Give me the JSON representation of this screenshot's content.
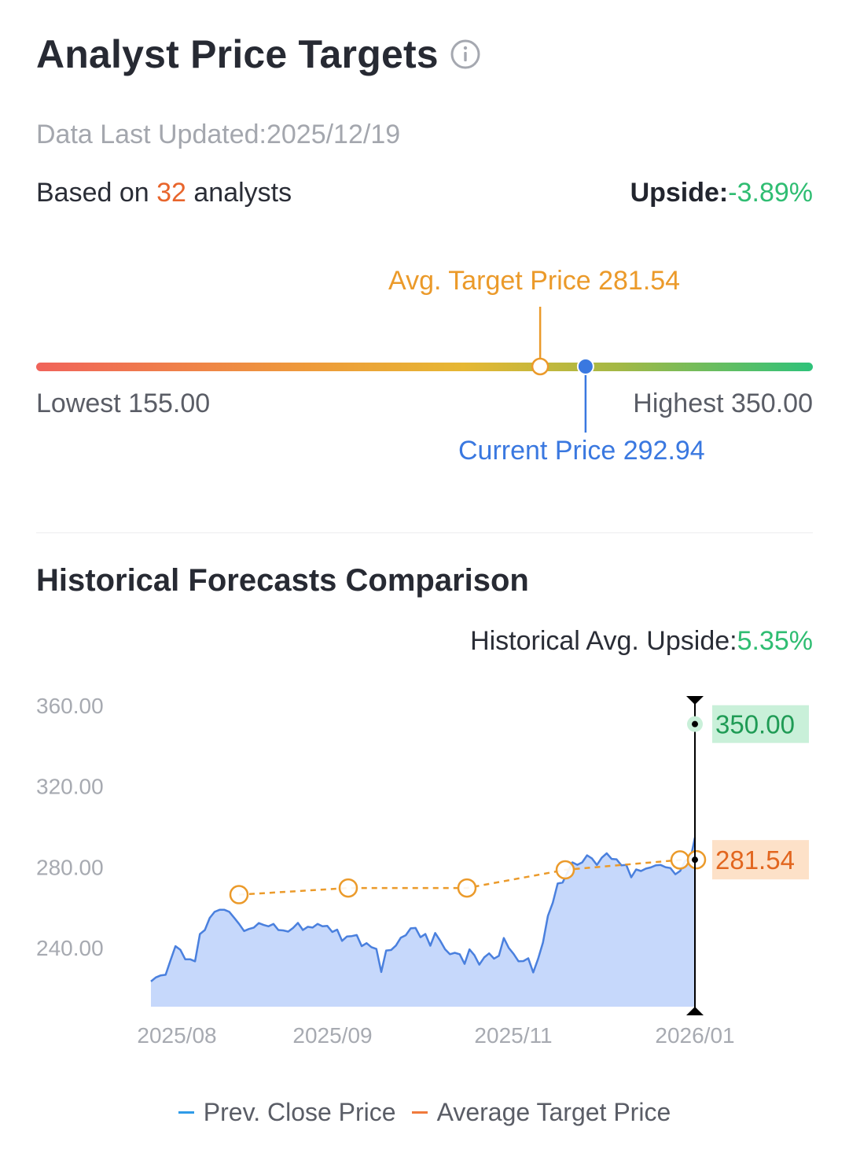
{
  "header": {
    "title": "Analyst Price Targets",
    "updated": "Data Last Updated:2025/12/19",
    "based_prefix": "Based on ",
    "analyst_count": "32",
    "based_suffix": " analysts",
    "upside_label": "Upside:",
    "upside_value": "-3.89%"
  },
  "range": {
    "avg_label": "Avg. Target Price 281.54",
    "lowest_label": "Lowest 155.00",
    "highest_label": "Highest 350.00",
    "current_label": "Current Price 292.94",
    "low": 155.0,
    "high": 350.0,
    "avg": 281.54,
    "current": 292.94
  },
  "history": {
    "title": "Historical Forecasts Comparison",
    "avg_upside_label": "Historical Avg. Upside:",
    "avg_upside_value": "5.35%"
  },
  "colors": {
    "price_line": "#4a80de",
    "price_fill": "#c6d8fb",
    "target": "#eb9a2a",
    "high_badge_bg": "#c9f0d9",
    "high_badge_text": "#1f9b55",
    "avg_badge_bg": "#fde1c8",
    "avg_badge_text": "#e2661f"
  },
  "chart_data": {
    "type": "line",
    "ylim": [
      210,
      360
    ],
    "yticks": [
      "360.00",
      "320.00",
      "280.00",
      "240.00"
    ],
    "xtick_labels": [
      "2025/08",
      "2025/09",
      "2025/11",
      "2026/01"
    ],
    "series": [
      {
        "name": "Prev. Close Price",
        "values": [
          222.5,
          224.5,
          225.5,
          225.8,
          233,
          240,
          238.2,
          233.5,
          233.5,
          232.5,
          246,
          248,
          254,
          257,
          258,
          258,
          257,
          254,
          251,
          247.5,
          248.5,
          249.2,
          251.4,
          250.5,
          249.8,
          251,
          248,
          247.8,
          247.2,
          249,
          251.5,
          248,
          249.6,
          249.2,
          251,
          249.8,
          250,
          247,
          248.2,
          242.6,
          244.8,
          245,
          245.5,
          240,
          241.5,
          239.5,
          238.6,
          227.2,
          237.8,
          238.1,
          240.3,
          244.2,
          245.4,
          248.8,
          249,
          244.4,
          246,
          240.2,
          246.5,
          242.8,
          238.5,
          236,
          236.7,
          236,
          231.2,
          238.4,
          235.5,
          230.8,
          234.4,
          236.4,
          233.8,
          235.2,
          244,
          239.2,
          236.2,
          232.5,
          232.6,
          234,
          227,
          233.7,
          241.8,
          255,
          261.5,
          271,
          271.5,
          276.5,
          281.5,
          280.3,
          281.5,
          285,
          283.4,
          280.2,
          283.8,
          286,
          283.2,
          283,
          280,
          280.2,
          274.1,
          278,
          277.2,
          278.4,
          279,
          280,
          280.2,
          279.1,
          278.7,
          275.6,
          277.3,
          282.3,
          282.2,
          293.8
        ]
      },
      {
        "name": "Average Target Price",
        "points": [
          [
            0.163,
            265.5
          ],
          [
            0.397,
            268.8
          ],
          [
            0.637,
            268.8
          ],
          [
            0.827,
            277.8
          ],
          [
            0.976,
            282.7
          ],
          [
            1.0,
            282.8
          ]
        ]
      }
    ],
    "markers": [
      {
        "label": "350.00",
        "value": 350.0
      },
      {
        "label": "281.54",
        "value": 282.8
      }
    ]
  },
  "legend": {
    "price": "Prev. Close Price",
    "target": "Average Target Price",
    "price_color": "#2f9be8",
    "target_color": "#f07a3c"
  }
}
